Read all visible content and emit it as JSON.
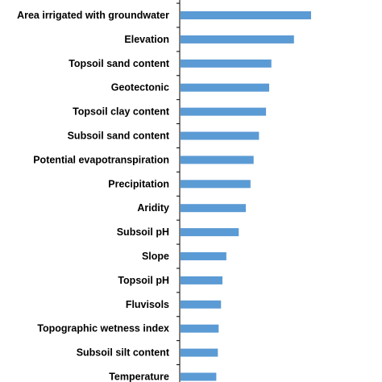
{
  "chart_data": {
    "type": "bar",
    "orientation": "horizontal",
    "categories": [
      "Area irrigated with groundwater",
      "Elevation",
      "Topsoil sand content",
      "Geotectonic",
      "Topsoil clay content",
      "Subsoil sand content",
      "Potential evapotranspiration",
      "Precipitation",
      "Aridity",
      "Subsoil pH",
      "Slope",
      "Topsoil pH",
      "Fluvisols",
      "Topographic wetness index",
      "Subsoil silt content",
      "Temperature"
    ],
    "values": [
      100,
      86.9,
      69.6,
      67.9,
      65.5,
      60.1,
      56.0,
      53.6,
      50.0,
      44.6,
      35.1,
      32.1,
      31.0,
      29.2,
      28.6,
      27.4
    ],
    "xlim": [
      0,
      100
    ],
    "grid": false,
    "legend": "none",
    "bar_color": "#5b9bd5",
    "axis_color": "#000000"
  }
}
